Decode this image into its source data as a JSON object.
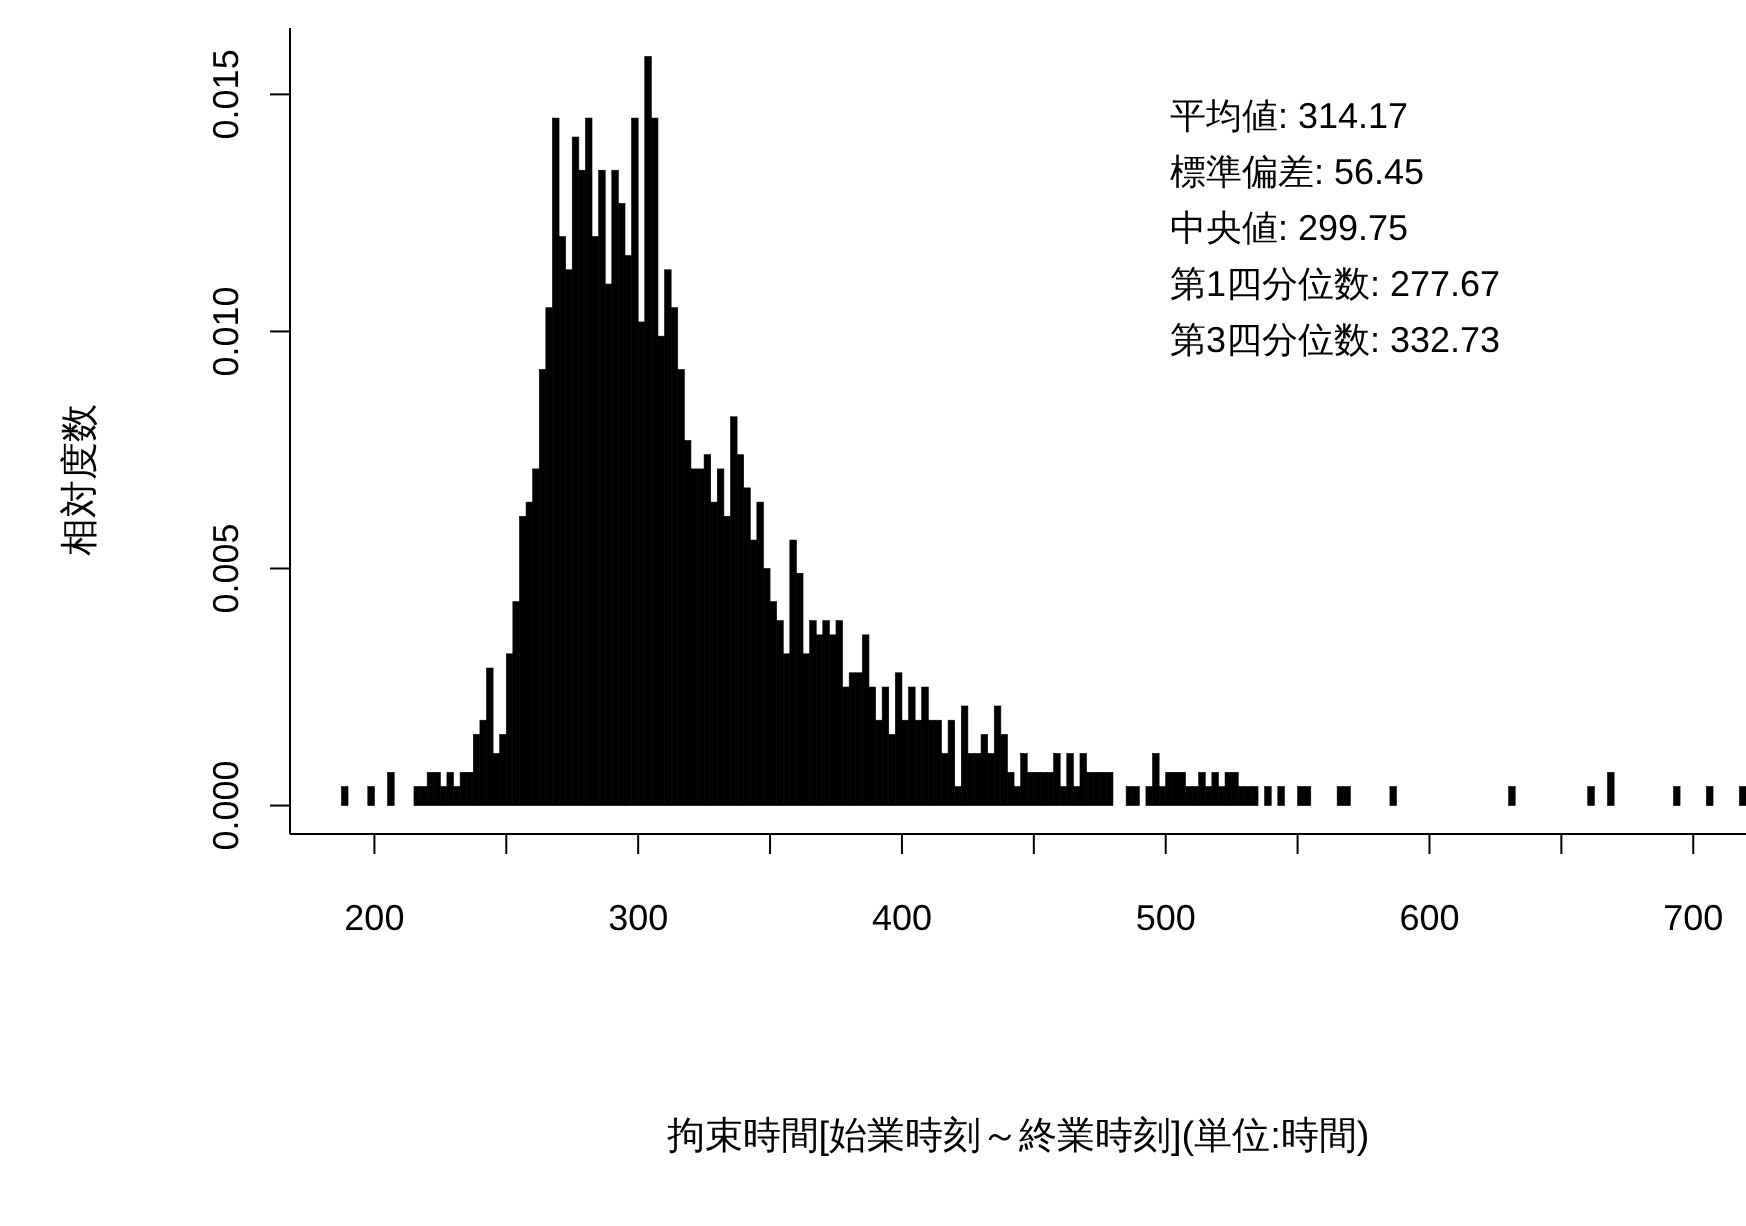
{
  "chart_data": {
    "type": "histogram",
    "xlabel": "拘束時間[始業時刻～終業時刻](単位:時間)",
    "ylabel": "相対度数",
    "annotations": [
      "平均値: 314.17",
      "標準偏差: 56.45",
      "中央値: 299.75",
      "第1四分位数: 277.67",
      "第3四分位数: 332.73"
    ],
    "color": "#000000",
    "xlim": [
      168,
      720
    ],
    "xticks": [
      200,
      {
        "value": 250,
        "label": null
      },
      300,
      {
        "value": 350,
        "label": null
      },
      400,
      {
        "value": 450,
        "label": null
      },
      500,
      {
        "value": 550,
        "label": null
      },
      600,
      {
        "value": 650,
        "label": null
      },
      700
    ],
    "ylim": [
      -0.0006,
      0.0164
    ],
    "yticks": [
      {
        "value": 0,
        "label": "0.000"
      },
      {
        "value": 0.005,
        "label": "0.005"
      },
      {
        "value": 0.01,
        "label": "0.010"
      },
      {
        "value": 0.015,
        "label": "0.015"
      }
    ],
    "bins": [
      187.5,
      190,
      192.5,
      195,
      197.5,
      200,
      202.5,
      205,
      207.5,
      210,
      212.5,
      215,
      217.5,
      220,
      222.5,
      225,
      227.5,
      230,
      232.5,
      235,
      237.5,
      240,
      242.5,
      245,
      247.5,
      250,
      252.5,
      255,
      257.5,
      260,
      262.5,
      265,
      267.5,
      270,
      272.5,
      275,
      277.5,
      280,
      282.5,
      285,
      287.5,
      290,
      292.5,
      295,
      297.5,
      300,
      302.5,
      305,
      307.5,
      310,
      312.5,
      315,
      317.5,
      320,
      322.5,
      325,
      327.5,
      330,
      332.5,
      335,
      337.5,
      340,
      342.5,
      345,
      347.5,
      350,
      352.5,
      355,
      357.5,
      360,
      362.5,
      365,
      367.5,
      370,
      372.5,
      375,
      377.5,
      380,
      382.5,
      385,
      387.5,
      390,
      392.5,
      395,
      397.5,
      400,
      402.5,
      405,
      407.5,
      410,
      412.5,
      415,
      417.5,
      420,
      422.5,
      425,
      427.5,
      430,
      432.5,
      435,
      437.5,
      440,
      442.5,
      445,
      447.5,
      450,
      452.5,
      455,
      457.5,
      460,
      462.5,
      465,
      467.5,
      470,
      472.5,
      475,
      477.5,
      480,
      482.5,
      485,
      487.5,
      490,
      492.5,
      495,
      497.5,
      500,
      502.5,
      505,
      507.5,
      510,
      512.5,
      515,
      517.5,
      520,
      522.5,
      525,
      527.5,
      530,
      532.5,
      535,
      537.5,
      540,
      542.5,
      545,
      547.5,
      550,
      552.5,
      555,
      557.5,
      560,
      562.5,
      565,
      567.5,
      570,
      572.5,
      575,
      577.5,
      580,
      582.5,
      585,
      587.5,
      590,
      592.5,
      595,
      597.5,
      600,
      602.5,
      605,
      607.5,
      610,
      612.5,
      615,
      617.5,
      620,
      622.5,
      625,
      627.5,
      630,
      632.5,
      635,
      637.5,
      640,
      642.5,
      645,
      647.5,
      650,
      652.5,
      655,
      657.5,
      660,
      662.5,
      665,
      667.5,
      670,
      672.5,
      675,
      677.5,
      680,
      682.5,
      685,
      687.5,
      690,
      692.5,
      695,
      697.5,
      700,
      702.5,
      705,
      707.5,
      710,
      712.5,
      715,
      717.5,
      720
    ],
    "values": [
      0.0004,
      0,
      0,
      0,
      0.0004,
      0,
      0,
      0.0007,
      0,
      0,
      0,
      0.0004,
      0.0004,
      0.0007,
      0.0007,
      0.0004,
      0.0007,
      0.0004,
      0.0007,
      0.0007,
      0.0015,
      0.0018,
      0.0029,
      0.0011,
      0.0015,
      0.0032,
      0.0043,
      0.0061,
      0.0064,
      0.0071,
      0.0092,
      0.0105,
      0.0145,
      0.012,
      0.0113,
      0.0141,
      0.0134,
      0.0145,
      0.012,
      0.0134,
      0.011,
      0.0134,
      0.0127,
      0.0116,
      0.0145,
      0.0102,
      0.0158,
      0.0145,
      0.0099,
      0.0113,
      0.0105,
      0.0092,
      0.0077,
      0.0071,
      0.0071,
      0.0074,
      0.0064,
      0.0071,
      0.0061,
      0.0082,
      0.0074,
      0.0067,
      0.0056,
      0.0064,
      0.005,
      0.0043,
      0.0039,
      0.0032,
      0.0056,
      0.0049,
      0.0032,
      0.0039,
      0.0036,
      0.0039,
      0.0036,
      0.0039,
      0.0025,
      0.0028,
      0.0028,
      0.0036,
      0.0025,
      0.0018,
      0.0025,
      0.0015,
      0.0028,
      0.0018,
      0.0025,
      0.0018,
      0.0025,
      0.0018,
      0.0018,
      0.0011,
      0.0018,
      0.0004,
      0.0021,
      0.0011,
      0.0011,
      0.0015,
      0.0011,
      0.0021,
      0.0015,
      0.0007,
      0.0004,
      0.0011,
      0.0007,
      0.0007,
      0.0007,
      0.0007,
      0.0011,
      0.0004,
      0.0011,
      0.0004,
      0.0011,
      0.0007,
      0.0007,
      0.0007,
      0.0007,
      0,
      0,
      0.0004,
      0.0004,
      0,
      0.0004,
      0.0011,
      0.0004,
      0.0007,
      0.0007,
      0.0007,
      0.0004,
      0.0004,
      0.0007,
      0.0004,
      0.0007,
      0.0004,
      0.0007,
      0.0007,
      0.0004,
      0.0004,
      0.0004,
      0,
      0.0004,
      0,
      0.0004,
      0,
      0,
      0.0004,
      0.0004,
      0,
      0,
      0,
      0,
      0.0004,
      0.0004,
      0,
      0,
      0,
      0,
      0,
      0,
      0.0004,
      0,
      0,
      0,
      0,
      0,
      0,
      0,
      0,
      0,
      0,
      0,
      0,
      0,
      0,
      0,
      0,
      0,
      0.0004,
      0,
      0,
      0,
      0,
      0,
      0,
      0,
      0,
      0,
      0,
      0,
      0.0004,
      0,
      0,
      0.0007,
      0,
      0,
      0,
      0,
      0,
      0,
      0,
      0,
      0,
      0.0004,
      0,
      0,
      0,
      0,
      0.0004,
      0,
      0,
      0,
      0,
      0.0004
    ]
  }
}
